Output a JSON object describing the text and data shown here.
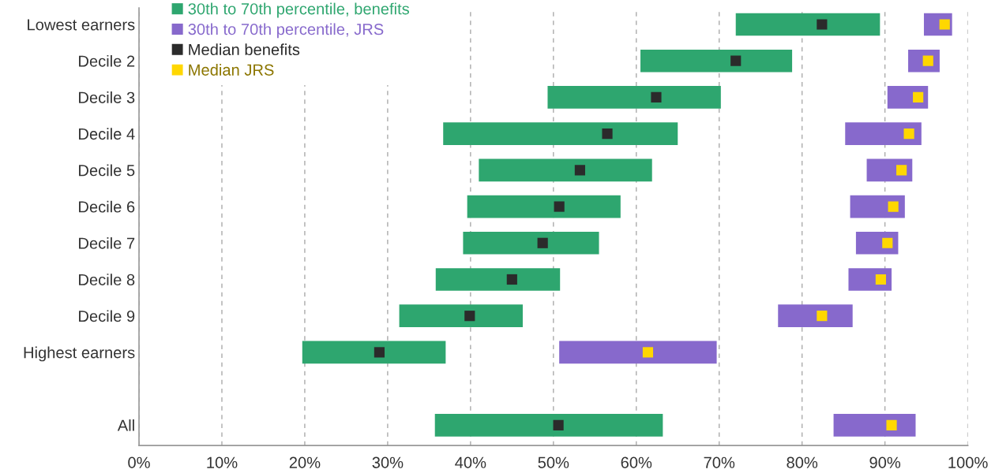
{
  "chart_data": {
    "type": "bar",
    "orientation": "horizontal",
    "categories": [
      "Lowest earners",
      "Decile 2",
      "Decile 3",
      "Decile 4",
      "Decile 5",
      "Decile 6",
      "Decile 7",
      "Decile 8",
      "Decile 9",
      "Highest earners",
      null,
      "All"
    ],
    "series": [
      {
        "name": "30th to 70th percentile, benefits",
        "type": "bar",
        "color": "#2ea66f",
        "base": [
          72.0,
          60.5,
          49.3,
          36.7,
          41.0,
          39.6,
          39.1,
          35.8,
          31.4,
          19.7,
          null,
          35.7
        ],
        "values": [
          17.4,
          18.3,
          20.9,
          28.3,
          20.9,
          18.5,
          16.4,
          15.0,
          14.9,
          17.3,
          null,
          27.5
        ]
      },
      {
        "name": "30th to 70th percentile, JRS",
        "type": "bar",
        "color": "#8769cc",
        "base": [
          94.7,
          92.8,
          90.3,
          85.2,
          87.8,
          85.8,
          86.5,
          85.6,
          77.1,
          50.7,
          null,
          83.8
        ],
        "values": [
          3.4,
          3.8,
          4.9,
          9.2,
          5.5,
          6.6,
          5.1,
          5.2,
          9.0,
          19.0,
          null,
          9.9
        ]
      },
      {
        "name": "Median benefits",
        "type": "scatter",
        "marker": "square",
        "color": "#2b2b2b",
        "values": [
          82.4,
          72.0,
          62.4,
          56.5,
          53.2,
          50.7,
          48.7,
          45.0,
          39.9,
          29.0,
          null,
          50.6
        ]
      },
      {
        "name": "Median JRS",
        "type": "scatter",
        "marker": "square",
        "color": "#ffd700",
        "values": [
          97.2,
          95.2,
          94.0,
          92.9,
          92.0,
          91.0,
          90.3,
          89.5,
          82.4,
          61.4,
          null,
          90.8
        ]
      }
    ],
    "xlim": [
      0,
      100
    ],
    "xticks": [
      {
        "value": 0,
        "label": "0%"
      },
      {
        "value": 10,
        "label": "10%"
      },
      {
        "value": 20,
        "label": "20%"
      },
      {
        "value": 30,
        "label": "30%"
      },
      {
        "value": 40,
        "label": "40%"
      },
      {
        "value": 50,
        "label": "50%"
      },
      {
        "value": 60,
        "label": "60%"
      },
      {
        "value": 70,
        "label": "70%"
      },
      {
        "value": 80,
        "label": "80%"
      },
      {
        "value": 90,
        "label": "90%"
      },
      {
        "value": 100,
        "label": "100%"
      }
    ],
    "grid": "x",
    "legend": "top left"
  }
}
